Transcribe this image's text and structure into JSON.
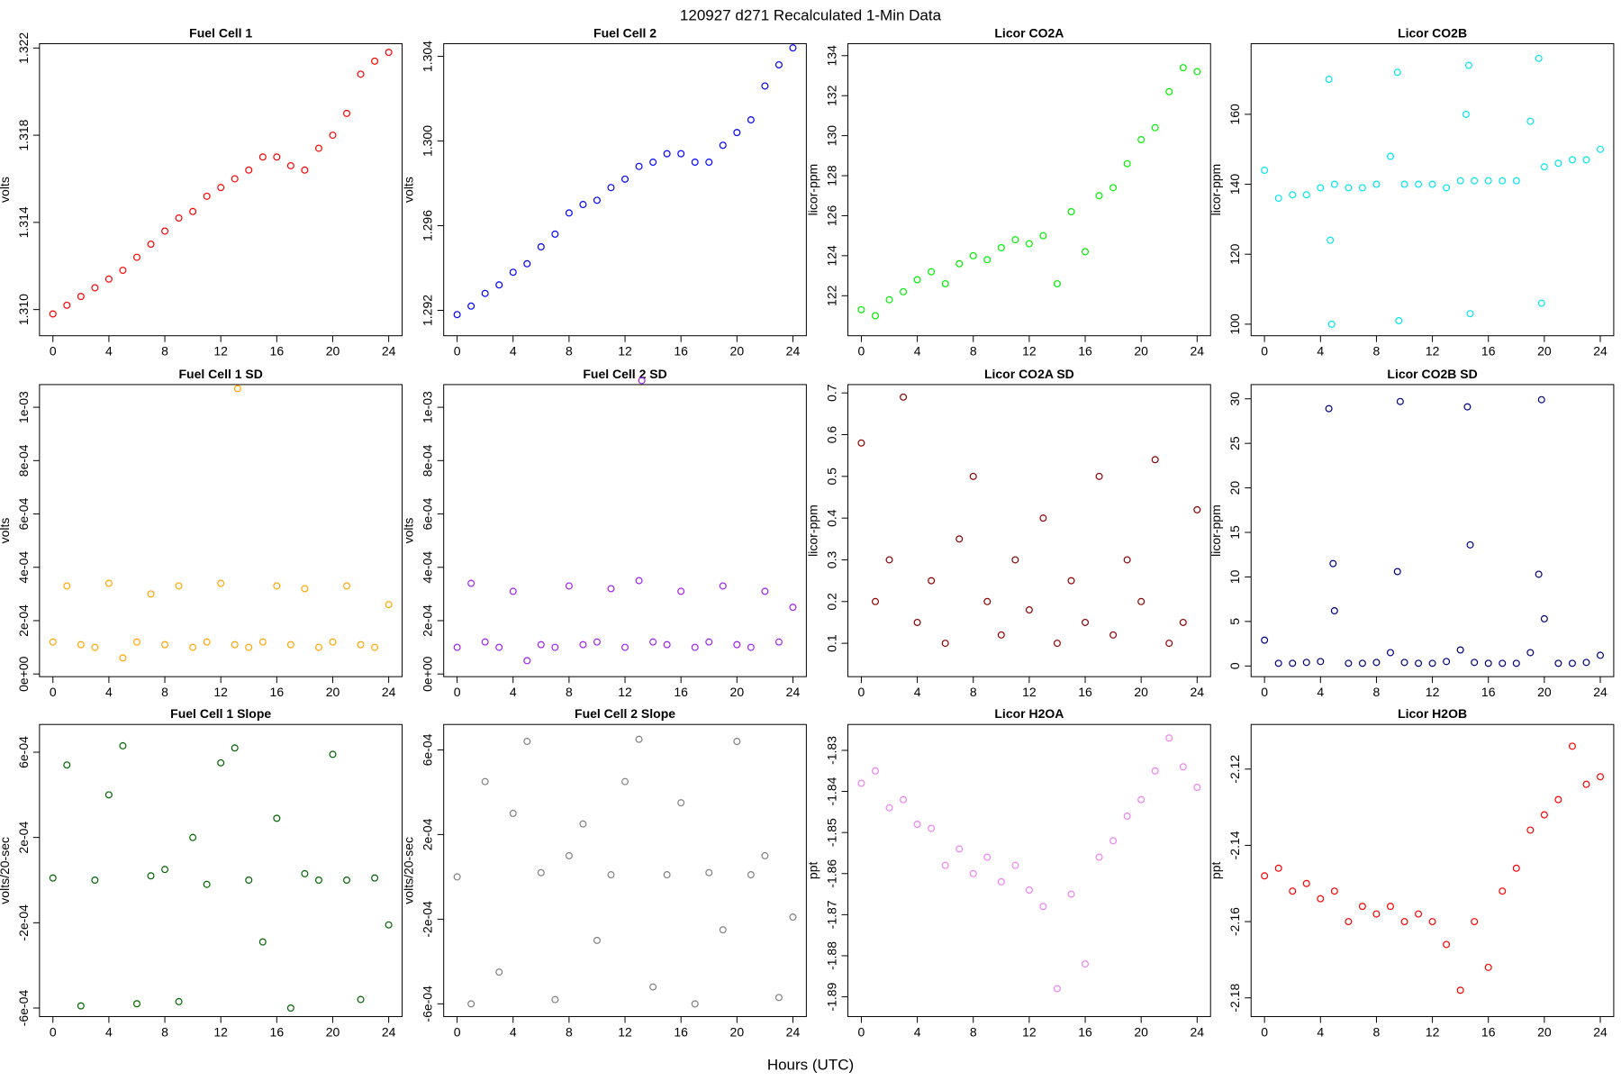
{
  "title": "120927   d271   Recalculated 1-Min Data",
  "x_label": "Hours (UTC)",
  "chart_data": [
    {
      "type": "scatter",
      "title": "Fuel Cell 1",
      "y_label": "volts",
      "color": "#ff0000",
      "x": [
        0,
        1,
        2,
        3,
        4,
        5,
        6,
        7,
        8,
        9,
        10,
        11,
        12,
        13,
        14,
        15,
        16,
        17,
        18,
        19,
        20,
        21,
        22,
        23,
        24
      ],
      "values": [
        1.3098,
        1.3102,
        1.3106,
        1.311,
        1.3114,
        1.3118,
        1.3124,
        1.313,
        1.3136,
        1.3142,
        1.3145,
        1.3152,
        1.3156,
        1.316,
        1.3164,
        1.317,
        1.317,
        1.3166,
        1.3164,
        1.3174,
        1.318,
        1.319,
        1.3208,
        1.3214,
        1.3218
      ],
      "xlim": [
        -0.96,
        24.96
      ],
      "xticks": [
        0,
        4,
        8,
        12,
        16,
        20,
        24
      ],
      "ylim": [
        1.3088,
        1.3222
      ],
      "yticks": [
        {
          "value": 1.31,
          "label": "1.310"
        },
        1.314,
        1.318,
        1.322
      ]
    },
    {
      "type": "scatter",
      "title": "Fuel Cell 2",
      "y_label": "volts",
      "color": "#0000ff",
      "x": [
        0,
        1,
        2,
        3,
        4,
        5,
        6,
        7,
        8,
        9,
        10,
        11,
        12,
        13,
        14,
        15,
        16,
        17,
        18,
        19,
        20,
        21,
        22,
        23,
        24
      ],
      "values": [
        1.2918,
        1.2922,
        1.2928,
        1.2932,
        1.2938,
        1.2942,
        1.295,
        1.2956,
        1.2966,
        1.297,
        1.2972,
        1.2978,
        1.2982,
        1.2988,
        1.299,
        1.2994,
        1.2994,
        1.299,
        1.299,
        1.2998,
        1.3004,
        1.301,
        1.3026,
        1.3036,
        1.3044
      ],
      "xlim": [
        -0.96,
        24.96
      ],
      "xticks": [
        0,
        4,
        8,
        12,
        16,
        20,
        24
      ],
      "ylim": [
        1.2908,
        1.3046
      ],
      "yticks": [
        1.292,
        1.296,
        {
          "value": 1.3,
          "label": "1.300"
        },
        1.304
      ]
    },
    {
      "type": "scatter",
      "title": "Licor CO2A",
      "y_label": "licor-ppm",
      "color": "#00ee00",
      "x": [
        0,
        1,
        2,
        3,
        4,
        5,
        6,
        7,
        8,
        9,
        10,
        11,
        12,
        13,
        14,
        15,
        16,
        17,
        18,
        19,
        20,
        21,
        22,
        23,
        24
      ],
      "values": [
        121.3,
        121,
        121.8,
        122.2,
        122.8,
        123.2,
        122.6,
        123.6,
        124,
        123.8,
        124.4,
        124.8,
        124.6,
        125,
        122.6,
        126.2,
        124.2,
        127,
        127.4,
        128.6,
        129.8,
        130.4,
        132.2,
        133.4,
        133.2
      ],
      "xlim": [
        -0.96,
        24.96
      ],
      "xticks": [
        0,
        4,
        8,
        12,
        16,
        20,
        24
      ],
      "ylim": [
        120.0,
        134.6
      ],
      "yticks": [
        122,
        124,
        126,
        128,
        130,
        132,
        134
      ]
    },
    {
      "type": "scatter",
      "title": "Licor CO2B",
      "y_label": "licor-ppm",
      "color": "#00e5ee",
      "x": [
        0,
        1,
        2,
        3,
        4,
        4.6,
        4.7,
        4.8,
        5,
        6,
        7,
        8,
        9,
        9.5,
        9.6,
        10,
        11,
        12,
        13,
        14,
        14.4,
        14.6,
        14.7,
        15,
        16,
        17,
        18,
        19,
        19.6,
        19.8,
        20,
        21,
        22,
        23,
        24
      ],
      "values": [
        144,
        136,
        137,
        137,
        139,
        170,
        124,
        100,
        140,
        139,
        139,
        140,
        148,
        172,
        101,
        140,
        140,
        140,
        139,
        141,
        160,
        174,
        103,
        141,
        141,
        141,
        141,
        158,
        176,
        106,
        145,
        146,
        147,
        147,
        150
      ],
      "xlim": [
        -0.96,
        24.96
      ],
      "xticks": [
        0,
        4,
        8,
        12,
        16,
        20,
        24
      ],
      "ylim": [
        96.7,
        180.2
      ],
      "yticks": [
        100,
        120,
        140,
        160
      ]
    },
    {
      "type": "scatter",
      "title": "Fuel Cell 1 SD",
      "y_label": "volts",
      "color": "#ffa500",
      "x": [
        0,
        1,
        2,
        3,
        4,
        5,
        6,
        7,
        8,
        9,
        10,
        11,
        12,
        13,
        14,
        15,
        16,
        17,
        18,
        19,
        20,
        21,
        22,
        23,
        24,
        13.2
      ],
      "values": [
        0.00012,
        0.00033,
        0.00011,
        0.0001,
        0.00034,
        6e-05,
        0.00012,
        0.0003,
        0.00011,
        0.00033,
        0.0001,
        0.00012,
        0.00034,
        0.00011,
        0.0001,
        0.00012,
        0.00033,
        0.00011,
        0.00032,
        0.0001,
        0.00012,
        0.00033,
        0.00011,
        0.0001,
        0.00026,
        0.00107
      ],
      "xlim": [
        -0.96,
        24.96
      ],
      "xticks": [
        0,
        4,
        8,
        12,
        16,
        20,
        24
      ],
      "ylim": [
        -1e-05,
        0.001085
      ],
      "yticks": [
        {
          "value": 0,
          "label": "0e+00"
        },
        {
          "value": 0.0002,
          "label": "2e-04"
        },
        {
          "value": 0.0004,
          "label": "4e-04"
        },
        {
          "value": 0.0006,
          "label": "6e-04"
        },
        {
          "value": 0.0008,
          "label": "8e-04"
        },
        {
          "value": 0.001,
          "label": "1e-03"
        }
      ]
    },
    {
      "type": "scatter",
      "title": "Fuel Cell 2 SD",
      "y_label": "volts",
      "color": "#a020f0",
      "x": [
        0,
        1,
        2,
        3,
        4,
        5,
        6,
        7,
        8,
        9,
        10,
        11,
        12,
        13,
        14,
        15,
        16,
        17,
        18,
        19,
        20,
        21,
        22,
        23,
        24,
        13.2
      ],
      "values": [
        0.0001,
        0.00034,
        0.00012,
        0.0001,
        0.00031,
        5e-05,
        0.00011,
        0.0001,
        0.00033,
        0.00011,
        0.00012,
        0.00032,
        0.0001,
        0.00035,
        0.00012,
        0.00011,
        0.00031,
        0.0001,
        0.00012,
        0.00033,
        0.00011,
        0.0001,
        0.00031,
        0.00012,
        0.00025,
        0.0011
      ],
      "xlim": [
        -0.96,
        24.96
      ],
      "xticks": [
        0,
        4,
        8,
        12,
        16,
        20,
        24
      ],
      "ylim": [
        -1e-05,
        0.001085
      ],
      "yticks": [
        {
          "value": 0,
          "label": "0e+00"
        },
        {
          "value": 0.0002,
          "label": "2e-04"
        },
        {
          "value": 0.0004,
          "label": "4e-04"
        },
        {
          "value": 0.0006,
          "label": "6e-04"
        },
        {
          "value": 0.0008,
          "label": "8e-04"
        },
        {
          "value": 0.001,
          "label": "1e-03"
        }
      ]
    },
    {
      "type": "scatter",
      "title": "Licor CO2A SD",
      "y_label": "licor-ppm",
      "color": "#8b0000",
      "x": [
        0,
        1,
        2,
        3,
        4,
        5,
        6,
        7,
        8,
        9,
        10,
        11,
        12,
        13,
        14,
        15,
        16,
        17,
        18,
        19,
        20,
        21,
        22,
        23,
        24
      ],
      "values": [
        0.58,
        0.2,
        0.3,
        0.69,
        0.15,
        0.25,
        0.1,
        0.35,
        0.5,
        0.2,
        0.12,
        0.3,
        0.18,
        0.4,
        0.1,
        0.25,
        0.15,
        0.5,
        0.12,
        0.3,
        0.2,
        0.54,
        0.1,
        0.15,
        0.42
      ],
      "xlim": [
        -0.96,
        24.96
      ],
      "xticks": [
        0,
        4,
        8,
        12,
        16,
        20,
        24
      ],
      "ylim": [
        0.02,
        0.72
      ],
      "yticks": [
        0.1,
        0.2,
        0.3,
        0.4,
        0.5,
        0.6,
        0.7
      ]
    },
    {
      "type": "scatter",
      "title": "Licor CO2B SD",
      "y_label": "licor-ppm",
      "color": "#000080",
      "x": [
        0,
        1,
        2,
        3,
        4,
        4.6,
        4.9,
        5,
        6,
        7,
        8,
        9,
        9.5,
        9.7,
        10,
        11,
        12,
        13,
        14,
        14.5,
        14.7,
        15,
        16,
        17,
        18,
        19,
        19.6,
        19.8,
        20,
        21,
        22,
        23,
        24
      ],
      "values": [
        2.9,
        0.3,
        0.3,
        0.4,
        0.5,
        28.9,
        11.5,
        6.2,
        0.3,
        0.3,
        0.4,
        1.5,
        10.6,
        29.7,
        0.4,
        0.3,
        0.3,
        0.5,
        1.8,
        29.1,
        13.6,
        0.4,
        0.3,
        0.3,
        0.3,
        1.5,
        10.3,
        29.9,
        5.3,
        0.3,
        0.3,
        0.4,
        1.2
      ],
      "xlim": [
        -0.96,
        24.96
      ],
      "xticks": [
        0,
        4,
        8,
        12,
        16,
        20,
        24
      ],
      "ylim": [
        -1.2,
        31.6
      ],
      "yticks": [
        0,
        5,
        10,
        15,
        20,
        25,
        30
      ]
    },
    {
      "type": "scatter",
      "title": "Fuel Cell 1 Slope",
      "y_label": "volts/20-sec",
      "color": "#006400",
      "x": [
        0,
        1,
        2,
        3,
        4,
        5,
        6,
        7,
        8,
        9,
        10,
        11,
        12,
        13,
        14,
        15,
        16,
        17,
        18,
        19,
        20,
        21,
        22,
        23,
        24
      ],
      "values": [
        1e-05,
        0.00054,
        -0.00059,
        0,
        0.0004,
        0.00063,
        -0.00058,
        2e-05,
        5e-05,
        -0.00057,
        0.0002,
        -2e-05,
        0.00055,
        0.00062,
        0,
        -0.00029,
        0.00029,
        -0.0006,
        3e-05,
        0,
        0.00059,
        0,
        -0.00056,
        1e-05,
        -0.00021
      ],
      "xlim": [
        -0.96,
        24.96
      ],
      "xticks": [
        0,
        4,
        8,
        12,
        16,
        20,
        24
      ],
      "ylim": [
        -0.00064,
        0.00073
      ],
      "yticks": [
        {
          "value": -0.0006,
          "label": "-6e-04"
        },
        {
          "value": -0.0002,
          "label": "-2e-04"
        },
        {
          "value": 0.0002,
          "label": "2e-04"
        },
        {
          "value": 0.0006,
          "label": "6e-04"
        }
      ]
    },
    {
      "type": "scatter",
      "title": "Fuel Cell 2 Slope",
      "y_label": "volts/20-sec",
      "color": "#808080",
      "x": [
        0,
        1,
        2,
        3,
        4,
        5,
        6,
        7,
        8,
        9,
        10,
        11,
        12,
        13,
        14,
        15,
        16,
        17,
        18,
        19,
        20,
        21,
        22,
        23,
        24
      ],
      "values": [
        0,
        -0.0006,
        0.00045,
        -0.00045,
        0.0003,
        0.00064,
        2e-05,
        -0.00058,
        0.0001,
        0.00025,
        -0.0003,
        1e-05,
        0.00045,
        0.00065,
        -0.00052,
        1e-05,
        0.00035,
        -0.0006,
        2e-05,
        -0.00025,
        0.00064,
        1e-05,
        0.0001,
        -0.00057,
        -0.00019
      ],
      "xlim": [
        -0.96,
        24.96
      ],
      "xticks": [
        0,
        4,
        8,
        12,
        16,
        20,
        24
      ],
      "ylim": [
        -0.00066,
        0.00072
      ],
      "yticks": [
        {
          "value": -0.0006,
          "label": "-6e-04"
        },
        {
          "value": -0.0002,
          "label": "-2e-04"
        },
        {
          "value": 0.0002,
          "label": "2e-04"
        },
        {
          "value": 0.0006,
          "label": "6e-04"
        }
      ]
    },
    {
      "type": "scatter",
      "title": "Licor H2OA",
      "y_label": "ppt",
      "color": "#ee82ee",
      "x": [
        0,
        1,
        2,
        3,
        4,
        5,
        6,
        7,
        8,
        9,
        10,
        11,
        12,
        13,
        14,
        15,
        16,
        17,
        18,
        19,
        20,
        21,
        22,
        23,
        24
      ],
      "values": [
        -1.838,
        -1.835,
        -1.844,
        -1.842,
        -1.848,
        -1.849,
        -1.858,
        -1.854,
        -1.86,
        -1.856,
        -1.862,
        -1.858,
        -1.864,
        -1.868,
        -1.888,
        -1.865,
        -1.882,
        -1.856,
        -1.852,
        -1.846,
        -1.842,
        -1.835,
        -1.827,
        -1.834,
        -1.839
      ],
      "xlim": [
        -0.96,
        24.96
      ],
      "xticks": [
        0,
        4,
        8,
        12,
        16,
        20,
        24
      ],
      "ylim": [
        -1.8948,
        -1.8237
      ],
      "yticks": [
        -1.89,
        -1.88,
        -1.87,
        -1.86,
        -1.85,
        -1.84,
        -1.83
      ]
    },
    {
      "type": "scatter",
      "title": "Licor H2OB",
      "y_label": "ppt",
      "color": "#ff0000",
      "x": [
        0,
        1,
        2,
        3,
        4,
        5,
        6,
        7,
        8,
        9,
        10,
        11,
        12,
        13,
        14,
        15,
        16,
        17,
        18,
        19,
        20,
        21,
        22,
        23,
        24
      ],
      "values": [
        -2.148,
        -2.146,
        -2.152,
        -2.15,
        -2.154,
        -2.152,
        -2.16,
        -2.156,
        -2.158,
        -2.156,
        -2.16,
        -2.158,
        -2.16,
        -2.166,
        -2.178,
        -2.16,
        -2.172,
        -2.152,
        -2.146,
        -2.136,
        -2.132,
        -2.128,
        -2.114,
        -2.124,
        -2.122
      ],
      "xlim": [
        -0.96,
        24.96
      ],
      "xticks": [
        0,
        4,
        8,
        12,
        16,
        20,
        24
      ],
      "ylim": [
        -2.1849,
        -2.1083
      ],
      "yticks": [
        -2.18,
        -2.16,
        -2.14,
        -2.12
      ]
    }
  ]
}
